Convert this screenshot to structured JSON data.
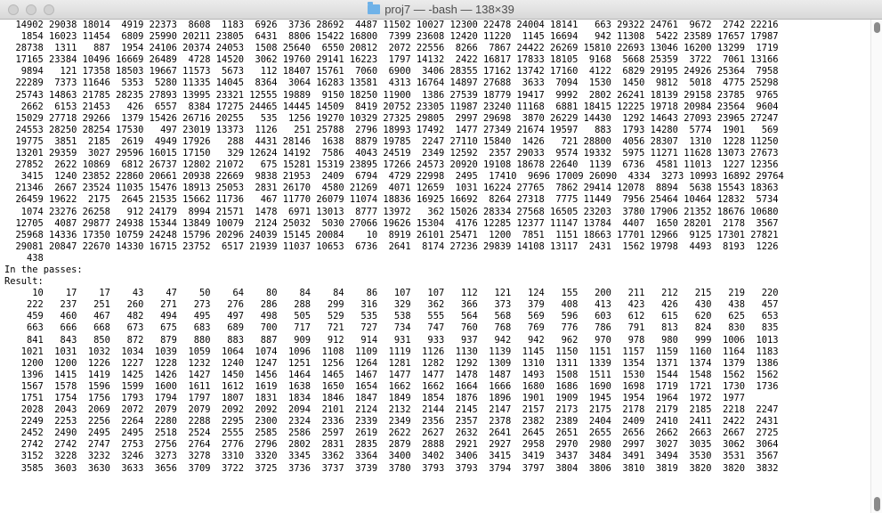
{
  "window": {
    "title": "proj7 — -bash — 138×39",
    "folder_icon": "folder-icon"
  },
  "terminal": {
    "lines": [
      "  14902 29038 18014  4919 22373  8608  1183  6926  3736 28692  4487 11502 10027 12300 22478 24004 18141   663 29322 24761  9672  2742 22216",
      "   1854 16023 11454  6809 25990 20211 23805  6431  8806 15422 16800  7399 23608 12420 11220  1145 16694   942 11308  5422 23589 17657 17987",
      "  28738  1311   887  1954 24106 20374 24053  1508 25640  6550 20812  2072 22556  8266  7867 24422 26269 15810 22693 13046 16200 13299  1719",
      "  17165 23384 10496 16669 26489  4728 14520  3062 19760 29141 16223  1797 14132  2422 16817 17833 18105  9168  5668 25359  3722  7061 13166",
      "   9894   121 17358 18503 19667 11573  5673   112 18407 15761  7060  6900  3406 28355 17162 13742 17160  4122  6829 29195 24926 25364  7958",
      "  22289  7373 11646  5353  5280 11335 14045  8364  3064 16283 13581  4313 16764 14897 27688  3633  7094  1530  1450  9812  5018  4775 25298",
      "  25743 14863 21785 28235 27893 13995 23321 12555 19889  9150 18250 11900  1386 27539 18779 19417  9992  2802 26241 18139 29158 23785  9765",
      "   2662  6153 21453   426  6557  8384 17275 24465 14445 14509  8419 20752 23305 11987 23240 11168  6881 18415 12225 19718 20984 23564  9604",
      "  15029 27718 29266  1379 15426 26716 20255   535  1256 19270 10329 27325 29805  2997 29698  3870 26229 14430  1292 14643 27093 23965 27247",
      "  24553 28250 28254 17530   497 23019 13373  1126   251 25788  2796 18993 17492  1477 27349 21674 19597   883  1793 14280  5774  1901   569",
      "  19775  3851  2185  2619  4949 17926   288  4431 28146  1638  8879 19785  2247 27110 15840  1426   721 28800  4056 28307  1310  1228 11250",
      "  13201 29359  3027 29596 16015 17150   329 12624 14192  7586  4043 24519  2349 12592  2357 29033  9574 19332  5975 11271 11628 13073 27673",
      "  27852  2622 10869  6812 26737 12802 21072   675 15281 15319 23895 17266 24573 20920 19108 18678 22640  1139  6736  4581 11013  1227 12356",
      "   3415  1240 23852 22860 20661 20938 22669  9838 21953  2409  6794  4729 22998  2495  17410  9696 17009 26090  4334  3273 10993 16892 29764",
      "  21346  2667 23524 11035 15476 18913 25053  2831 26170  4580 21269  4071 12659  1031 16224 27765  7862 29414 12078  8894  5638 15543 18363",
      "  26459 19622  2175  2645 21535 15662 11736   467 11770 26079 11074 18836 16925 16692  8264 27318  7775 11449  7956 25464 10464 12832  5734",
      "   1074 23276 26258   912 24179  8994 21571  1478  6971 13013  8777 13972   362 15026 28334 27568 16505 23203  3780 17906 21352 18676 10680",
      "  12705  4087 29877 24938 15344 13849 10079  2124 25032  5030 27066 19626 15304  4176 12285 12377 11147 13784  4407  1650 28201  2178  3567",
      "  25968 14336 17350 10759 24248 15796 20296 24039 15145 20084    10  8919 26101 25471  1200  7851  1151 18663 17701 12966  9125 17301 27821",
      "  29081 20847 22670 14330 16715 23752  6517 21939 11037 10653  6736  2641  8174 27236 29839 14108 13117  2431  1562 19798  4493  8193  1226",
      "    438",
      "In the passes:",
      "Result:",
      "     10    17    17    43    47    50    64    80    84    84    86   107   107   112   121   124   155   200   211   212   215   219   220",
      "    222   237   251   260   271   273   276   286   288   299   316   329   362   366   373   379   408   413   423   426   430   438   457",
      "    459   460   467   482   494   495   497   498   505   529   535   538   555   564   568   569   596   603   612   615   620   625   653",
      "    663   666   668   673   675   683   689   700   717   721   727   734   747   760   768   769   776   786   791   813   824   830   835",
      "    841   843   850   872   879   880   883   887   909   912   914   931   933   937   942   942   962   970   978   980   999  1006  1013",
      "   1021  1031  1032  1034  1039  1059  1064  1074  1096  1108  1109  1119  1126  1130  1139  1145  1150  1151  1157  1159  1160  1164  1183",
      "   1200  1200  1226  1227  1228  1232  1240  1247  1251  1256  1264  1281  1282  1292  1309  1310  1311  1339  1354  1371  1374  1379  1386",
      "   1396  1415  1419  1425  1426  1427  1450  1456  1464  1465  1467  1477  1477  1478  1487  1493  1508  1511  1530  1544  1548  1562  1562",
      "   1567  1578  1596  1599  1600  1611  1612  1619  1638  1650  1654  1662  1662  1664  1666  1680  1686  1690  1698  1719  1721  1730  1736",
      "   1751  1754  1756  1793  1794  1797  1807  1831  1834  1846  1847  1849  1854  1876  1896  1901  1909  1945  1954  1964  1972  1977",
      "   2028  2043  2069  2072  2079  2079  2092  2092  2094  2101  2124  2132  2144  2145  2147  2157  2173  2175  2178  2179  2185  2218  2247",
      "   2249  2253  2256  2264  2280  2288  2295  2300  2324  2336  2339  2349  2356  2357  2378  2382  2389  2404  2409  2410  2411  2422  2431",
      "   2452  2490  2495  2495  2518  2524  2555  2585  2586  2597  2619  2622  2627  2632  2641  2645  2651  2655  2656  2662  2663  2667  2725",
      "   2742  2742  2747  2753  2756  2764  2776  2796  2802  2831  2835  2879  2888  2921  2927  2958  2970  2980  2997  3027  3035  3062  3064",
      "   3152  3228  3232  3246  3273  3278  3310  3320  3345  3362  3364  3400  3402  3406  3415  3419  3437  3484  3491  3494  3530  3531  3567",
      "   3585  3603  3630  3633  3656  3709  3722  3725  3736  3737  3739  3780  3793  3793  3794  3797  3804  3806  3810  3819  3820  3820  3832"
    ]
  }
}
